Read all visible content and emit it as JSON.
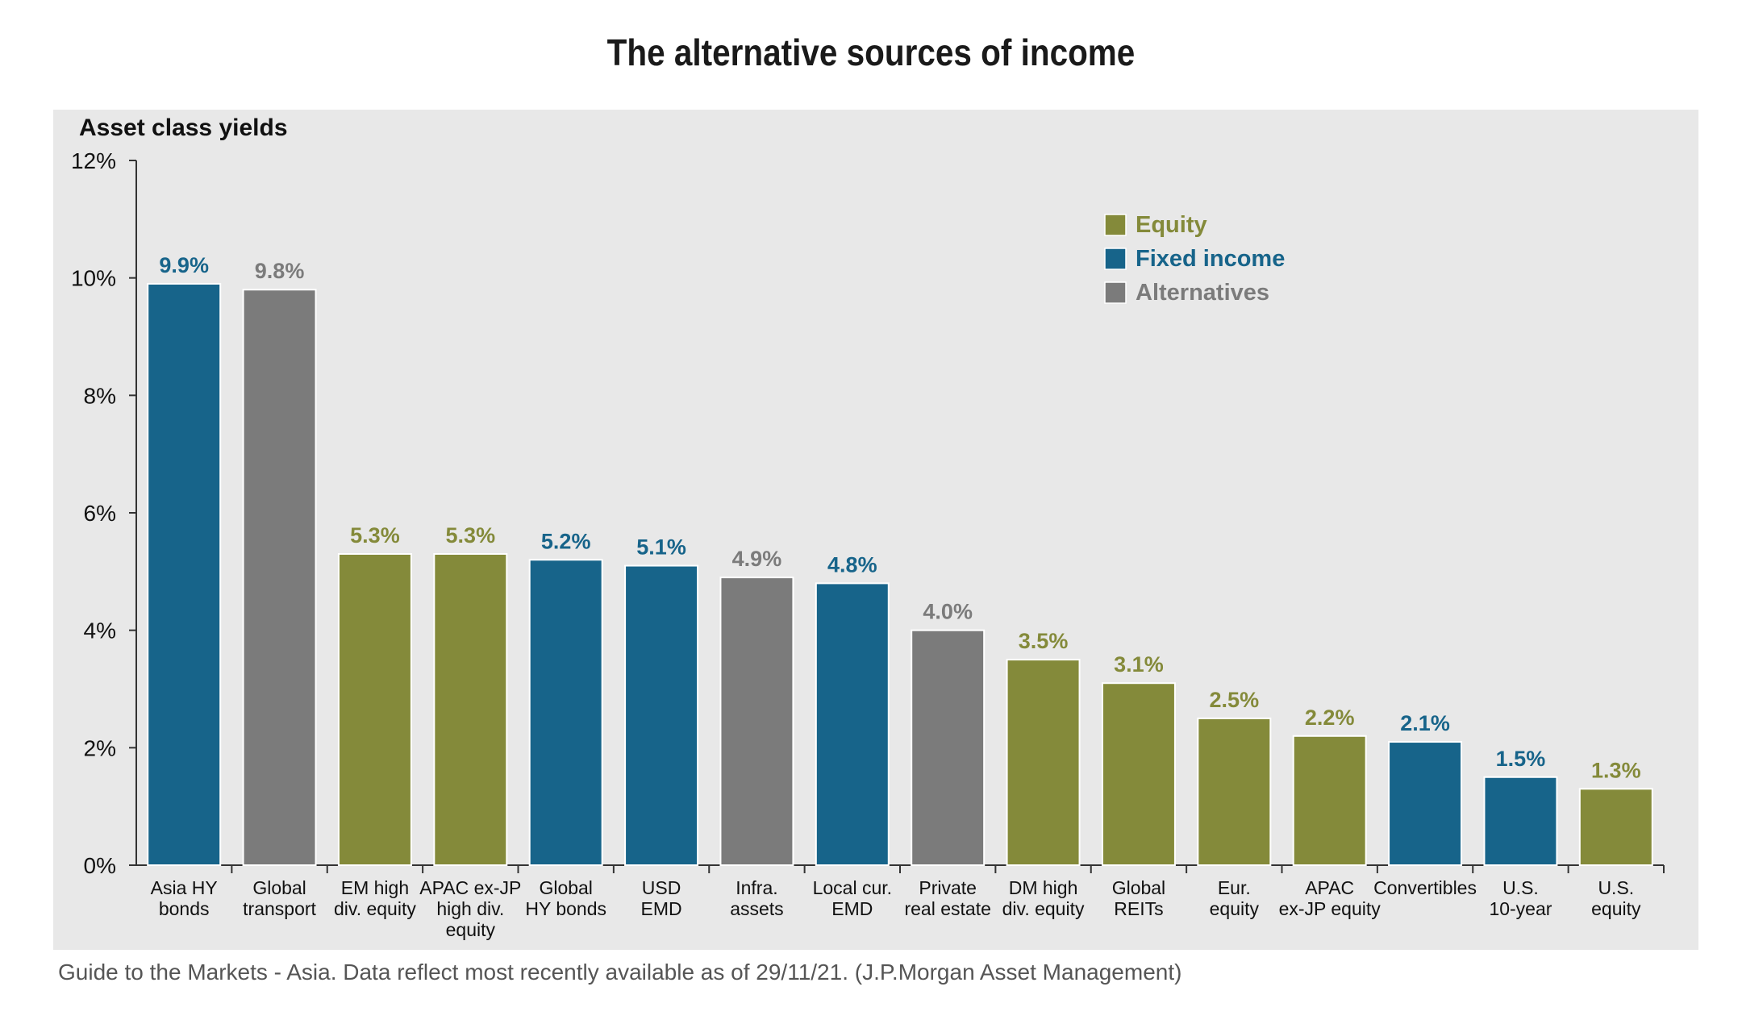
{
  "header": {
    "title": "The alternative sources of income"
  },
  "footer": {
    "note": "Guide to the Markets - Asia. Data reflect most recently available as of 29/11/21. (J.P.Morgan Asset Management)"
  },
  "colors": {
    "Equity": "#848a3a",
    "Fixed income": "#17648a",
    "Alternatives": "#7b7b7b"
  },
  "chart_data": {
    "type": "bar",
    "title": "Asset class yields",
    "xlabel": "",
    "ylabel": "",
    "ylim": [
      0,
      12
    ],
    "yticks": [
      "0%",
      "2%",
      "4%",
      "6%",
      "8%",
      "10%",
      "12%"
    ],
    "grid": false,
    "legend_position": "top-right",
    "legend": [
      "Equity",
      "Fixed income",
      "Alternatives"
    ],
    "bars": [
      {
        "category": [
          "Asia HY",
          "bonds"
        ],
        "value": 9.9,
        "label": "9.9%",
        "group": "Fixed income"
      },
      {
        "category": [
          "Global",
          "transport"
        ],
        "value": 9.8,
        "label": "9.8%",
        "group": "Alternatives"
      },
      {
        "category": [
          "EM high",
          "div. equity"
        ],
        "value": 5.3,
        "label": "5.3%",
        "group": "Equity"
      },
      {
        "category": [
          "APAC ex-JP",
          "high div.",
          "equity"
        ],
        "value": 5.3,
        "label": "5.3%",
        "group": "Equity"
      },
      {
        "category": [
          "Global",
          "HY bonds"
        ],
        "value": 5.2,
        "label": "5.2%",
        "group": "Fixed income"
      },
      {
        "category": [
          "USD",
          "EMD"
        ],
        "value": 5.1,
        "label": "5.1%",
        "group": "Fixed income"
      },
      {
        "category": [
          "Infra.",
          "assets"
        ],
        "value": 4.9,
        "label": "4.9%",
        "group": "Alternatives"
      },
      {
        "category": [
          "Local cur.",
          "EMD"
        ],
        "value": 4.8,
        "label": "4.8%",
        "group": "Fixed income"
      },
      {
        "category": [
          "Private",
          "real estate"
        ],
        "value": 4.0,
        "label": "4.0%",
        "group": "Alternatives"
      },
      {
        "category": [
          "DM high",
          "div. equity"
        ],
        "value": 3.5,
        "label": "3.5%",
        "group": "Equity"
      },
      {
        "category": [
          "Global",
          "REITs"
        ],
        "value": 3.1,
        "label": "3.1%",
        "group": "Equity"
      },
      {
        "category": [
          "Eur.",
          "equity"
        ],
        "value": 2.5,
        "label": "2.5%",
        "group": "Equity"
      },
      {
        "category": [
          "APAC",
          "ex-JP equity"
        ],
        "value": 2.2,
        "label": "2.2%",
        "group": "Equity"
      },
      {
        "category": [
          "Convertibles"
        ],
        "value": 2.1,
        "label": "2.1%",
        "group": "Fixed income"
      },
      {
        "category": [
          "U.S.",
          "10-year"
        ],
        "value": 1.5,
        "label": "1.5%",
        "group": "Fixed income"
      },
      {
        "category": [
          "U.S.",
          "equity"
        ],
        "value": 1.3,
        "label": "1.3%",
        "group": "Equity"
      }
    ]
  }
}
